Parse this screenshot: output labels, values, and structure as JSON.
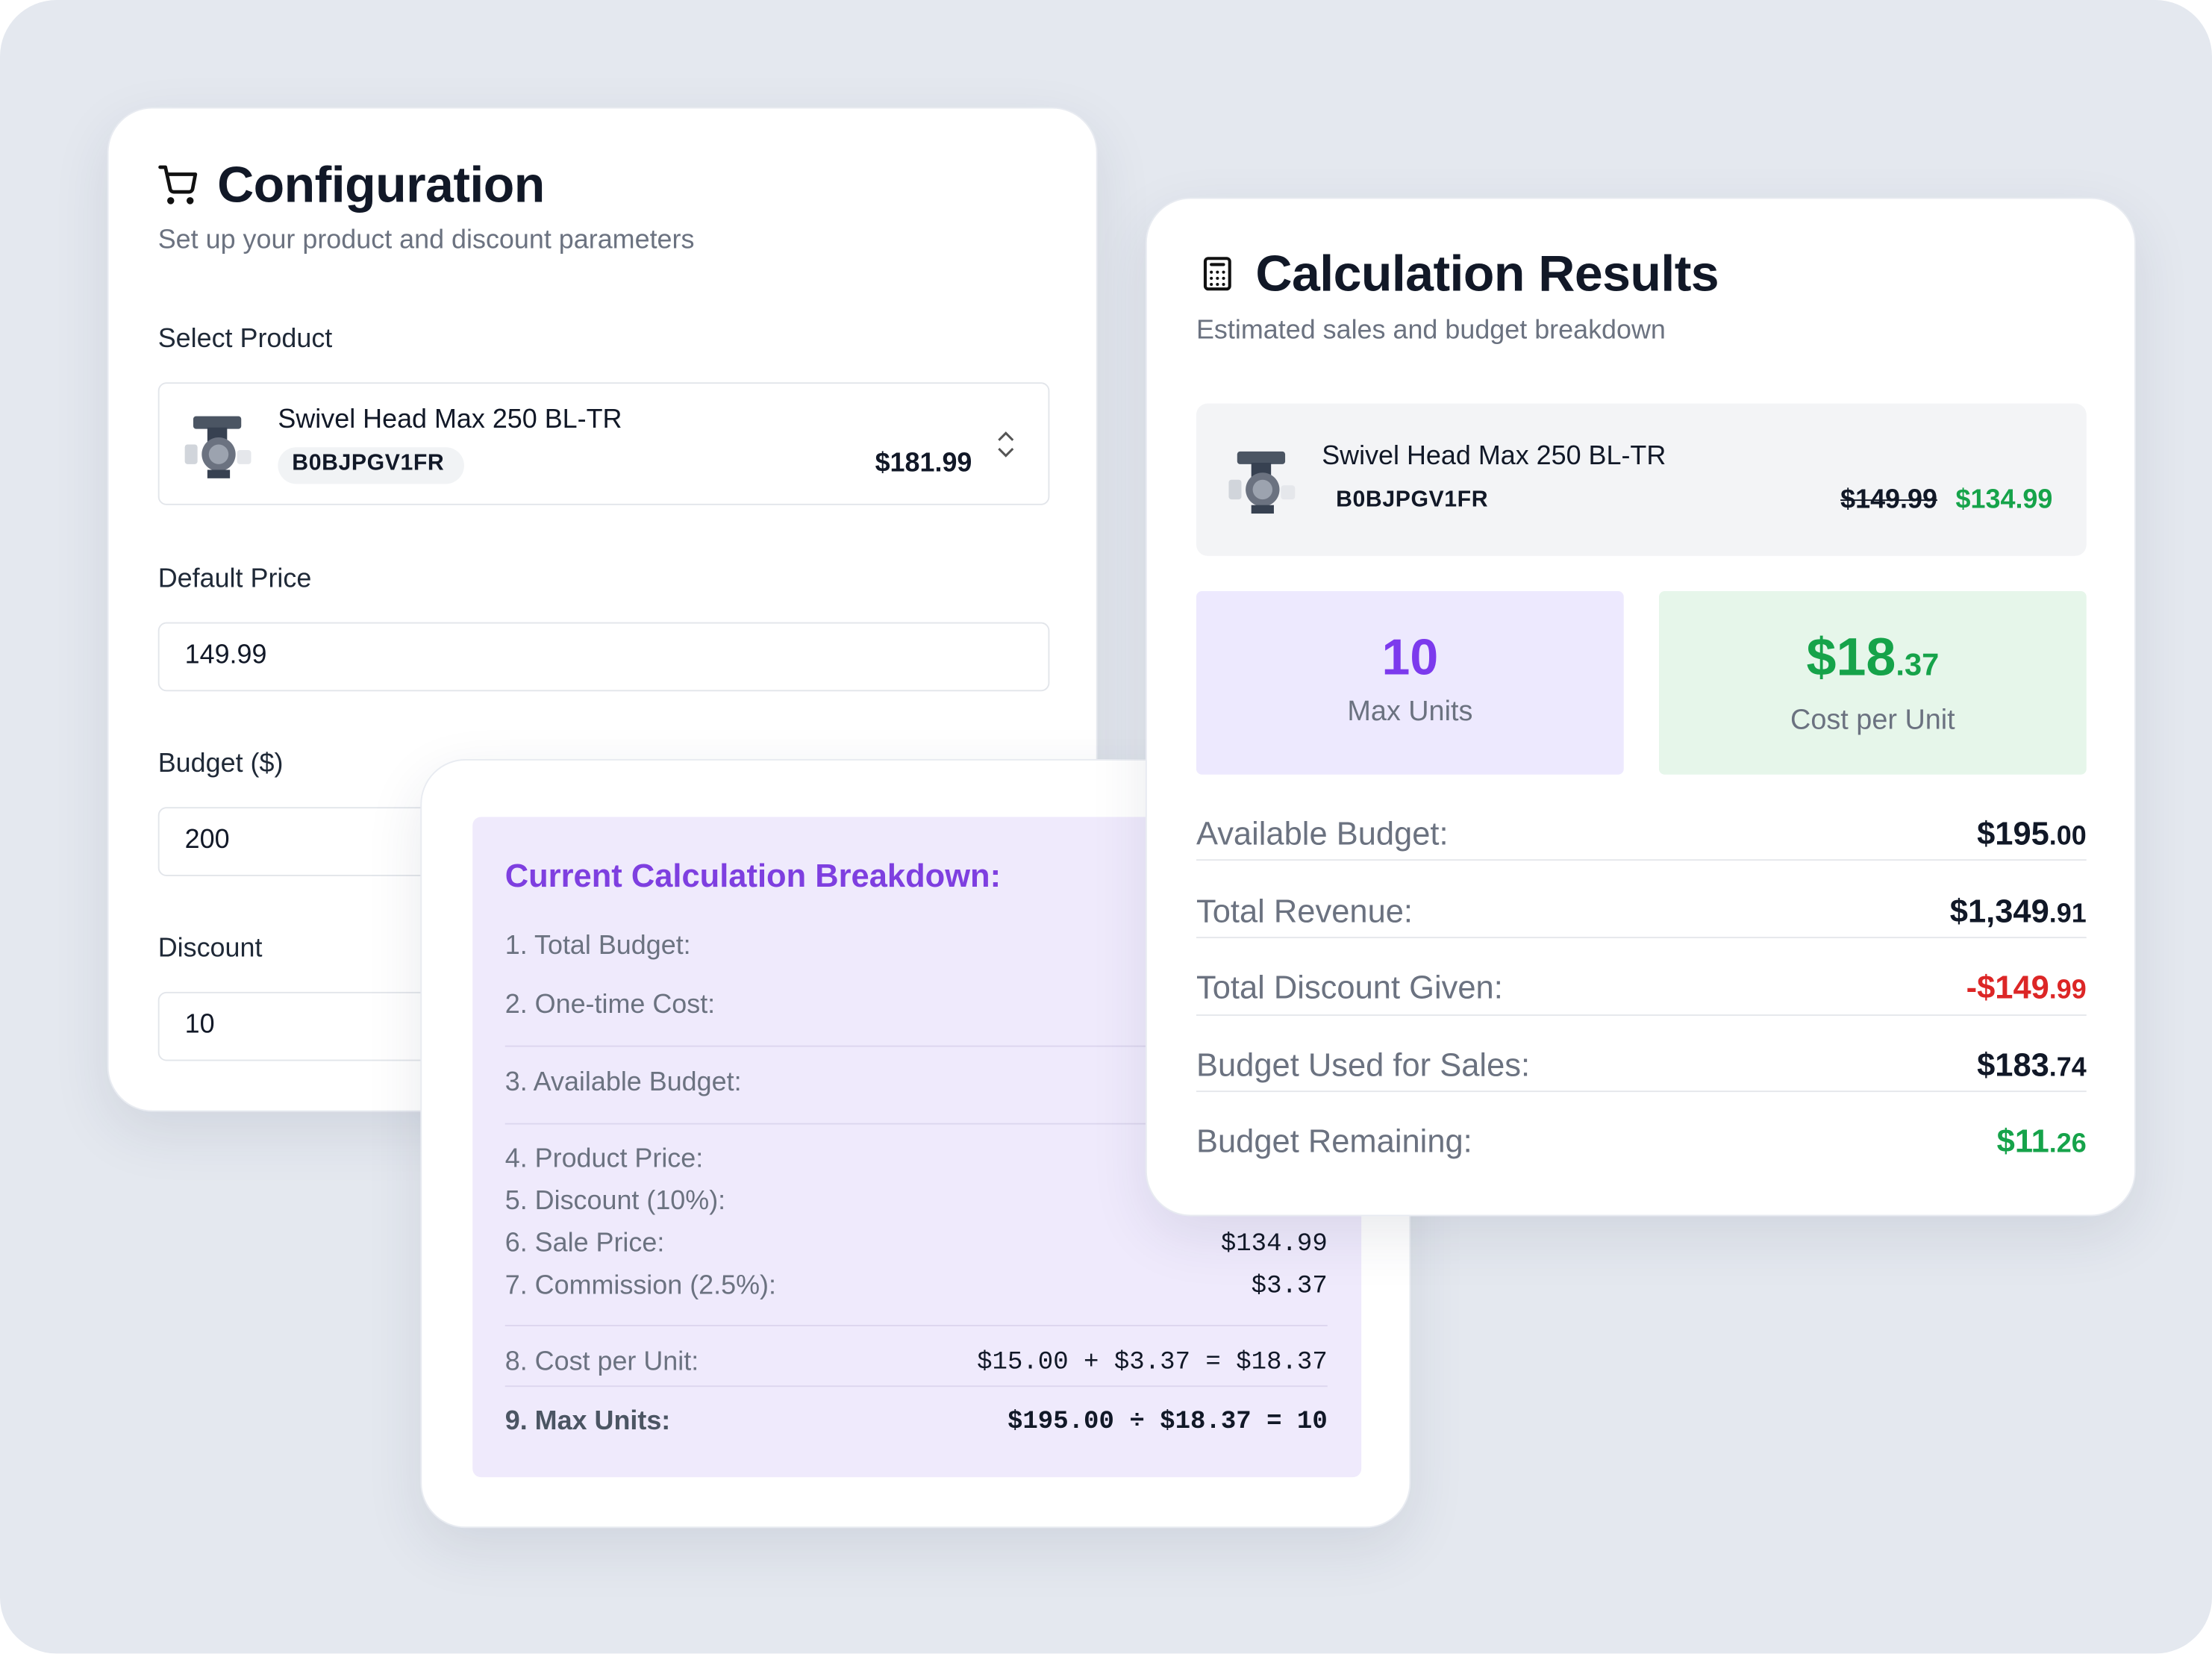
{
  "configuration": {
    "title": "Configuration",
    "subtitle": "Set up your product and discount parameters",
    "product_label": "Select Product",
    "product": {
      "name": "Swivel Head Max 250 BL-TR",
      "sku": "B0BJPGV1FR",
      "price": "$181.99"
    },
    "default_price_label": "Default Price",
    "default_price": "149.99",
    "budget_label": "Budget ($)",
    "budget": "200",
    "discount_label": "Discount",
    "discount": "10"
  },
  "breakdown": {
    "title": "Current Calculation Breakdown:",
    "rows": [
      {
        "label": "1. Total Budget:"
      },
      {
        "label": "2. One-time Cost:"
      },
      {
        "label": "3. Available Budget:"
      },
      {
        "label": "4. Product Price:"
      },
      {
        "label": "5. Discount (10%):"
      },
      {
        "label": "6. Sale Price:",
        "value": "$134.99"
      },
      {
        "label": "7. Commission (2.5%):",
        "value": "$3.37"
      },
      {
        "label": "8. Cost per Unit:",
        "value": "$15.00 + $3.37 = $18.37"
      },
      {
        "label": "9. Max Units:",
        "value": "$195.00 ÷ $18.37 = 10"
      }
    ]
  },
  "results": {
    "title": "Calculation Results",
    "subtitle": "Estimated sales and budget breakdown",
    "product": {
      "name": "Swivel Head Max 250 BL-TR",
      "sku": "B0BJPGV1FR",
      "old_price": "$149.99",
      "new_price": "$134.99"
    },
    "max_units": {
      "value": "10",
      "label": "Max Units"
    },
    "cost_per_unit": {
      "main": "$18",
      "cents": ".37",
      "label": "Cost per Unit"
    },
    "rows": [
      {
        "label": "Available Budget:",
        "main": "$195",
        "cents": ".00"
      },
      {
        "label": "Total Revenue:",
        "main": "$1,349",
        "cents": ".91"
      },
      {
        "label": "Total Discount Given:",
        "main": "-$149",
        "cents": ".99"
      },
      {
        "label": "Budget Used for Sales:",
        "main": "$183",
        "cents": ".74"
      },
      {
        "label": "Budget Remaining:",
        "main": "$11",
        "cents": ".26"
      }
    ]
  }
}
